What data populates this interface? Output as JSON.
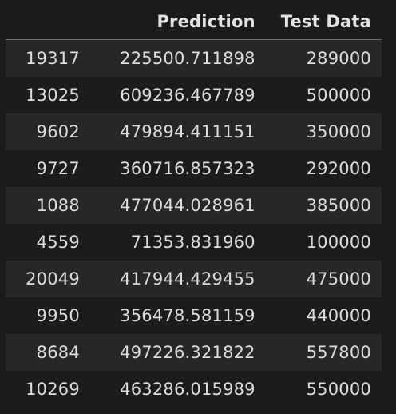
{
  "table": {
    "columns": [
      "",
      "Prediction",
      "Test Data"
    ],
    "rows": [
      {
        "index": "19317",
        "prediction": "225500.711898",
        "test": "289000"
      },
      {
        "index": "13025",
        "prediction": "609236.467789",
        "test": "500000"
      },
      {
        "index": "9602",
        "prediction": "479894.411151",
        "test": "350000"
      },
      {
        "index": "9727",
        "prediction": "360716.857323",
        "test": "292000"
      },
      {
        "index": "1088",
        "prediction": "477044.028961",
        "test": "385000"
      },
      {
        "index": "4559",
        "prediction": "71353.831960",
        "test": "100000"
      },
      {
        "index": "20049",
        "prediction": "417944.429455",
        "test": "475000"
      },
      {
        "index": "9950",
        "prediction": "356478.581159",
        "test": "440000"
      },
      {
        "index": "8684",
        "prediction": "497226.321822",
        "test": "557800"
      },
      {
        "index": "10269",
        "prediction": "463286.015989",
        "test": "550000"
      }
    ]
  }
}
